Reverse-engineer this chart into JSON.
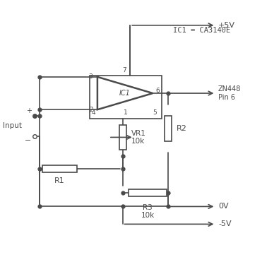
{
  "bg_color": "#ffffff",
  "line_color": "#4a4a4a",
  "text_color": "#4a4a4a",
  "title": "IC1 = CA3140E",
  "label_input": "Input",
  "label_ic1": "IC1",
  "label_ic1_title": "IC1 = CA3140E",
  "label_vr1": "VR1\n10k",
  "label_r1": "R1",
  "label_r2": "R2",
  "label_r3": "R3\n10k",
  "label_pin3": "3",
  "label_pin2": "2",
  "label_pin4": "4",
  "label_pin1": "1",
  "label_pin5": "5",
  "label_pin6": "6",
  "label_pin7": "7",
  "label_zn448": "ZN448\nPin 6",
  "label_5v": "+5V",
  "label_0v": "0V",
  "label_m5v": "-5V"
}
